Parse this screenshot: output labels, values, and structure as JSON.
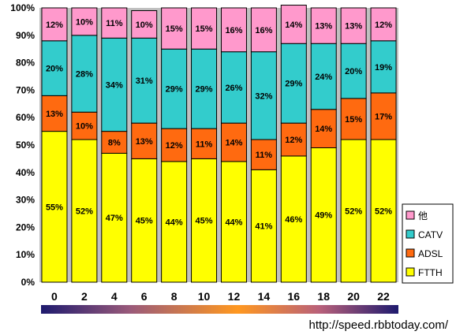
{
  "chart_data": {
    "type": "bar",
    "stacked": true,
    "percent": true,
    "categories": [
      "0",
      "2",
      "4",
      "6",
      "8",
      "10",
      "12",
      "14",
      "16",
      "18",
      "20",
      "22"
    ],
    "series": [
      {
        "name": "FTTH",
        "color": "#ffff00",
        "values": [
          55,
          52,
          47,
          45,
          44,
          45,
          44,
          41,
          46,
          49,
          52,
          52
        ]
      },
      {
        "name": "ADSL",
        "color": "#ff6a10",
        "values": [
          13,
          10,
          8,
          13,
          12,
          11,
          14,
          11,
          12,
          14,
          15,
          17
        ]
      },
      {
        "name": "CATV",
        "color": "#33cccc",
        "values": [
          20,
          28,
          34,
          31,
          29,
          29,
          26,
          32,
          29,
          24,
          20,
          19
        ]
      },
      {
        "name": "他",
        "color": "#ff99cc",
        "values": [
          12,
          10,
          11,
          10,
          15,
          15,
          16,
          16,
          14,
          13,
          13,
          12
        ]
      }
    ],
    "yticks": [
      "0%",
      "10%",
      "20%",
      "30%",
      "40%",
      "50%",
      "60%",
      "70%",
      "80%",
      "90%",
      "100%"
    ],
    "ylim": [
      0,
      100
    ],
    "label_suffix": "%",
    "plot_background": "#c0c0c0",
    "grid": false,
    "legend_position": "right"
  },
  "source_text": "http://speed.rbbtoday.com/"
}
